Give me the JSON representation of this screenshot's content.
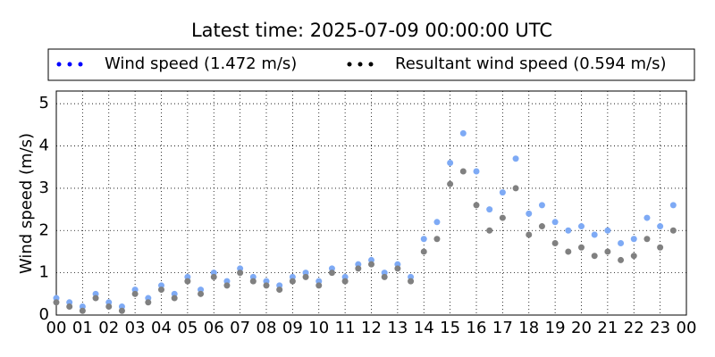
{
  "chart_data": {
    "type": "scatter",
    "title": "Latest time: 2025-07-09 00:00:00 UTC",
    "y_label": "Wind speed (m/s)",
    "x": [
      0,
      0.5,
      1,
      1.5,
      2,
      2.5,
      3,
      3.5,
      4,
      4.5,
      5,
      5.5,
      6,
      6.5,
      7,
      7.5,
      8,
      8.5,
      9,
      9.5,
      10,
      10.5,
      11,
      11.5,
      12,
      12.5,
      13,
      13.5,
      14,
      14.5,
      15,
      15.5,
      16,
      16.5,
      17,
      17.5,
      18,
      18.5,
      19,
      19.5,
      20,
      20.5,
      21,
      21.5,
      22,
      22.5,
      23,
      23.5
    ],
    "series": [
      {
        "name": "Wind speed (1.472 m/s)",
        "color": "#0000ff",
        "point_color": "#7eaaf5",
        "values": [
          0.4,
          0.3,
          0.2,
          0.5,
          0.3,
          0.2,
          0.6,
          0.4,
          0.7,
          0.5,
          0.9,
          0.6,
          1.0,
          0.8,
          1.1,
          0.9,
          0.8,
          0.7,
          0.9,
          1.0,
          0.8,
          1.1,
          0.9,
          1.2,
          1.3,
          1.0,
          1.2,
          0.9,
          1.8,
          2.2,
          3.6,
          4.3,
          3.4,
          2.5,
          2.9,
          3.7,
          2.4,
          2.6,
          2.2,
          2.0,
          2.1,
          1.9,
          2.0,
          1.7,
          1.8,
          2.3,
          2.1,
          2.6
        ]
      },
      {
        "name": "Resultant wind speed (0.594 m/s)",
        "color": "#000000",
        "point_color": "#808080",
        "values": [
          0.3,
          0.2,
          0.1,
          0.4,
          0.2,
          0.1,
          0.5,
          0.3,
          0.6,
          0.4,
          0.8,
          0.5,
          0.9,
          0.7,
          1.0,
          0.8,
          0.7,
          0.6,
          0.8,
          0.9,
          0.7,
          1.0,
          0.8,
          1.1,
          1.2,
          0.9,
          1.1,
          0.8,
          1.5,
          1.8,
          3.1,
          3.4,
          2.6,
          2.0,
          2.3,
          3.0,
          1.9,
          2.1,
          1.7,
          1.5,
          1.6,
          1.4,
          1.5,
          1.3,
          1.4,
          1.8,
          1.6,
          2.0
        ]
      }
    ],
    "xlim": [
      0,
      24
    ],
    "xticks": [
      {
        "value": 0,
        "label": "00"
      },
      {
        "value": 1,
        "label": "01"
      },
      {
        "value": 2,
        "label": "02"
      },
      {
        "value": 3,
        "label": "03"
      },
      {
        "value": 4,
        "label": "04"
      },
      {
        "value": 5,
        "label": "05"
      },
      {
        "value": 6,
        "label": "06"
      },
      {
        "value": 7,
        "label": "07"
      },
      {
        "value": 8,
        "label": "08"
      },
      {
        "value": 9,
        "label": "09"
      },
      {
        "value": 10,
        "label": "10"
      },
      {
        "value": 11,
        "label": "11"
      },
      {
        "value": 12,
        "label": "12"
      },
      {
        "value": 13,
        "label": "13"
      },
      {
        "value": 14,
        "label": "14"
      },
      {
        "value": 15,
        "label": "15"
      },
      {
        "value": 16,
        "label": "16"
      },
      {
        "value": 17,
        "label": "17"
      },
      {
        "value": 18,
        "label": "18"
      },
      {
        "value": 19,
        "label": "19"
      },
      {
        "value": 20,
        "label": "20"
      },
      {
        "value": 21,
        "label": "21"
      },
      {
        "value": 22,
        "label": "22"
      },
      {
        "value": 23,
        "label": "23"
      },
      {
        "value": 24,
        "label": "00"
      }
    ],
    "ylim": [
      0,
      5.3
    ],
    "yticks": [
      0,
      1,
      2,
      3,
      4,
      5
    ],
    "grid": true
  }
}
